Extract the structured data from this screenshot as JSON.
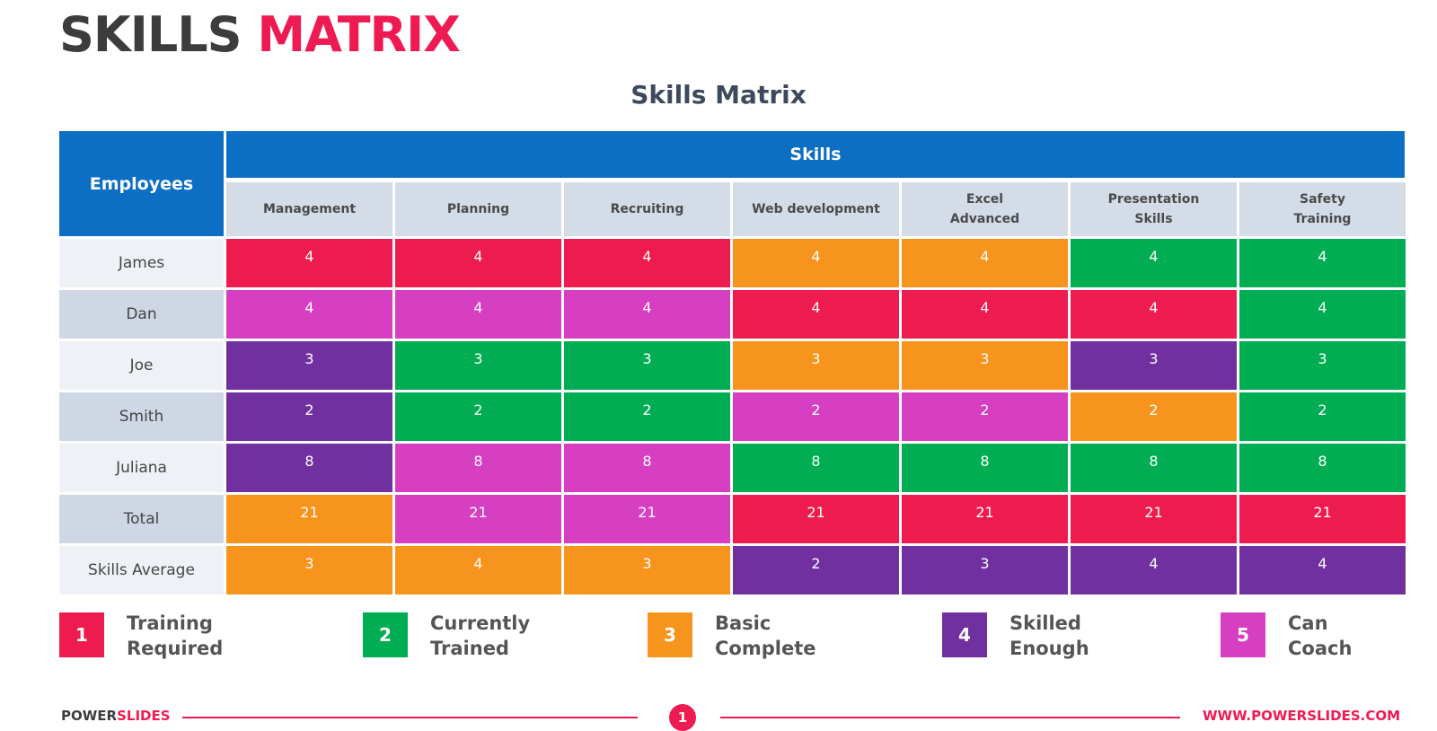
{
  "header": {
    "title_part1": "SKILLS",
    "title_part2": "MATRIX"
  },
  "subtitle": "Skills Matrix",
  "table": {
    "employees_header": "Employees",
    "skills_header": "Skills",
    "columns": [
      "Management",
      "Planning",
      "Recruiting",
      "Web development",
      "Excel\nAdvanced",
      "Presentation\nSkills",
      "Safety\nTraining"
    ],
    "rows": [
      {
        "label": "James",
        "values": [
          "4",
          "4",
          "4",
          "4",
          "4",
          "4",
          "4"
        ],
        "levels": [
          1,
          1,
          1,
          3,
          3,
          2,
          2
        ]
      },
      {
        "label": "Dan",
        "values": [
          "4",
          "4",
          "4",
          "4",
          "4",
          "4",
          "4"
        ],
        "levels": [
          5,
          5,
          5,
          1,
          1,
          1,
          2
        ]
      },
      {
        "label": "Joe",
        "values": [
          "3",
          "3",
          "3",
          "3",
          "3",
          "3",
          "3"
        ],
        "levels": [
          4,
          2,
          2,
          3,
          3,
          4,
          2
        ]
      },
      {
        "label": "Smith",
        "values": [
          "2",
          "2",
          "2",
          "2",
          "2",
          "2",
          "2"
        ],
        "levels": [
          4,
          2,
          2,
          5,
          5,
          3,
          2
        ]
      },
      {
        "label": "Juliana",
        "values": [
          "8",
          "8",
          "8",
          "8",
          "8",
          "8",
          "8"
        ],
        "levels": [
          4,
          5,
          5,
          2,
          2,
          2,
          2
        ]
      },
      {
        "label": "Total",
        "values": [
          "21",
          "21",
          "21",
          "21",
          "21",
          "21",
          "21"
        ],
        "levels": [
          3,
          5,
          5,
          1,
          1,
          1,
          1
        ]
      },
      {
        "label": "Skills Average",
        "values": [
          "3",
          "4",
          "3",
          "2",
          "3",
          "4",
          "4"
        ],
        "levels": [
          3,
          3,
          3,
          4,
          4,
          4,
          4
        ]
      }
    ]
  },
  "legend": [
    {
      "number": "1",
      "label": "Training\nRequired"
    },
    {
      "number": "2",
      "label": "Currently\nTrained"
    },
    {
      "number": "3",
      "label": "Basic\nComplete"
    },
    {
      "number": "4",
      "label": "Skilled\nEnough"
    },
    {
      "number": "5",
      "label": "Can\nCoach"
    }
  ],
  "colors": {
    "level_1": "#ee1b4f",
    "level_2": "#00ad53",
    "level_3": "#f7941d",
    "level_4": "#7030a0",
    "level_5": "#d63fc1",
    "header_blue": "#0d6fc4",
    "accent": "#ee1b52"
  },
  "footer": {
    "brand_part1": "POWER",
    "brand_part2": "SLIDES",
    "page_number": "1",
    "url": "WWW.POWERSLIDES.COM"
  }
}
